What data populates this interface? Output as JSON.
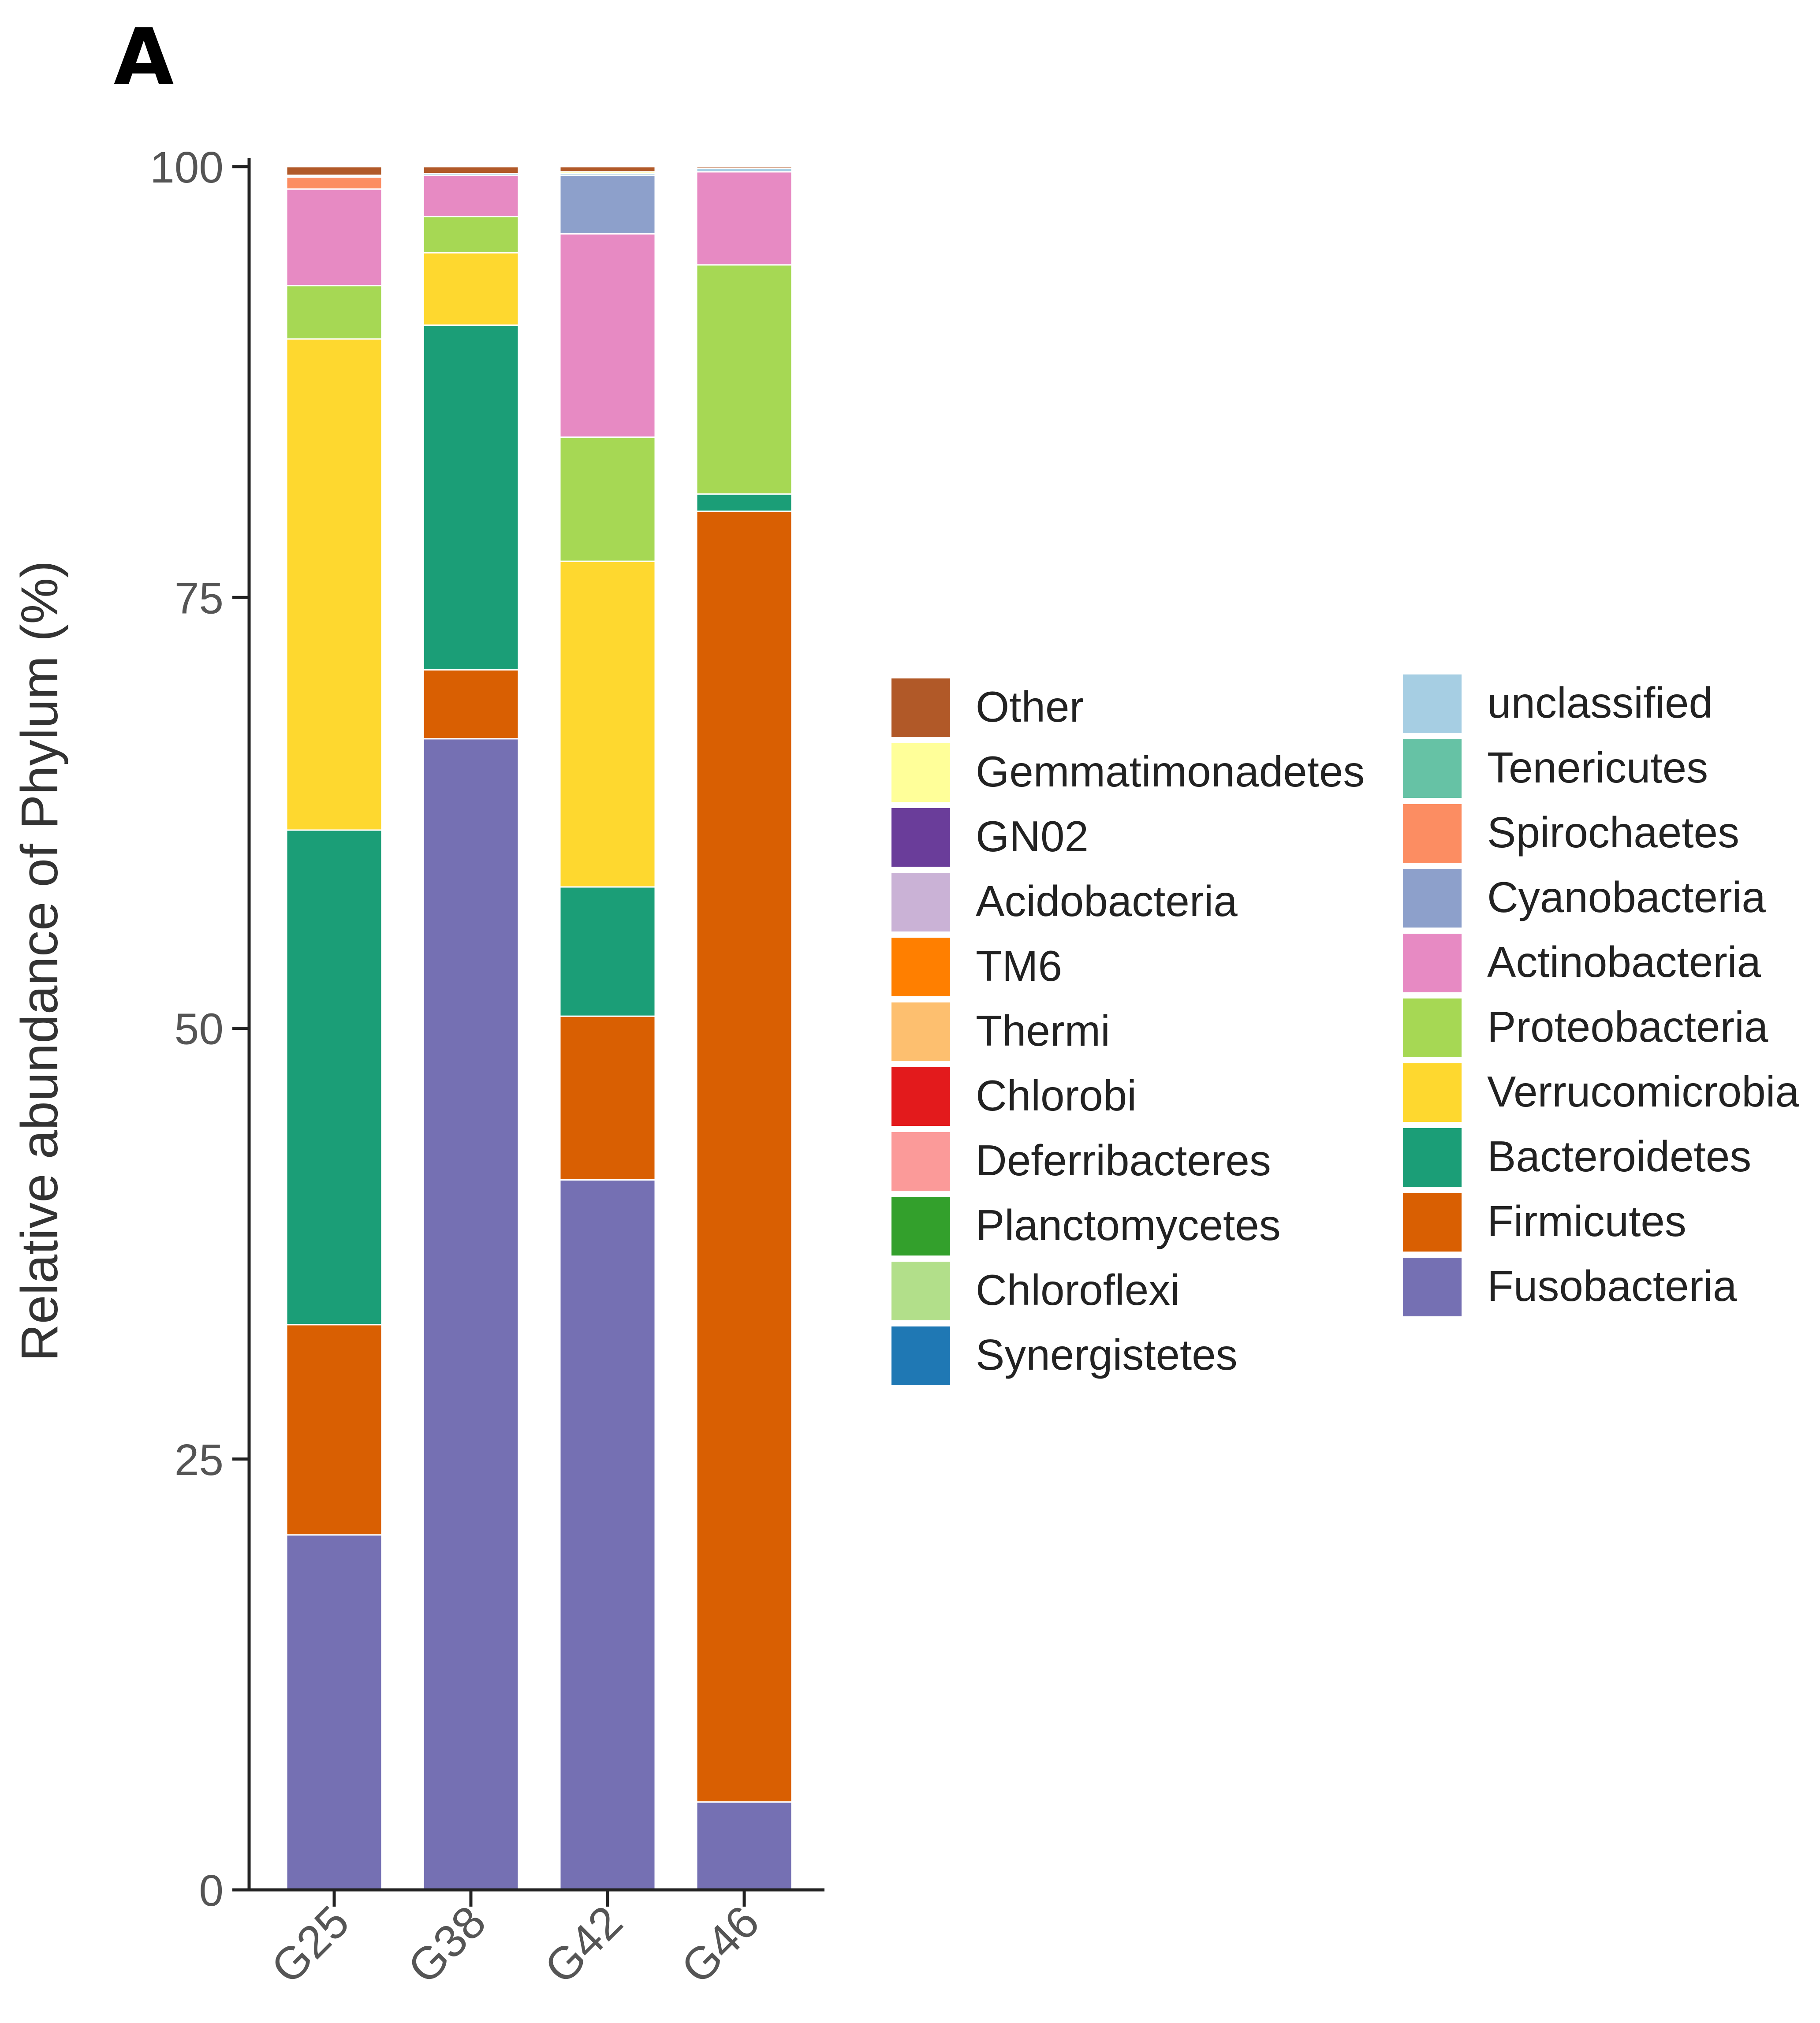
{
  "panel_label": "A",
  "chart_data": {
    "type": "bar",
    "stacked": true,
    "title": "",
    "xlabel": "",
    "ylabel": "Relative abundance of Phylum (%)",
    "ylim": [
      0,
      100
    ],
    "yticks": [
      0,
      25,
      50,
      75,
      100
    ],
    "categories": [
      "G25",
      "G38",
      "G42",
      "G46"
    ],
    "series": [
      {
        "name": "Fusobacteria",
        "color": "#7570b3",
        "values": [
          20.6,
          66.8,
          41.2,
          5.1
        ]
      },
      {
        "name": "Firmicutes",
        "color": "#d95f02",
        "values": [
          12.2,
          4.0,
          9.5,
          74.9
        ]
      },
      {
        "name": "Bacteroidetes",
        "color": "#1b9e77",
        "values": [
          28.7,
          20.0,
          7.5,
          1.0
        ]
      },
      {
        "name": "Verrucomicrobia",
        "color": "#fed82f",
        "values": [
          28.5,
          4.2,
          18.9,
          0
        ]
      },
      {
        "name": "Proteobacteria",
        "color": "#a6d854",
        "values": [
          3.1,
          2.1,
          7.2,
          13.3
        ]
      },
      {
        "name": "Actinobacteria",
        "color": "#e78ac3",
        "values": [
          5.6,
          2.4,
          11.8,
          5.4
        ]
      },
      {
        "name": "Cyanobacteria",
        "color": "#8da0cb",
        "values": [
          0,
          0,
          3.4,
          0
        ]
      },
      {
        "name": "Spirochaetes",
        "color": "#fc8d62",
        "values": [
          0.7,
          0,
          0,
          0
        ]
      },
      {
        "name": "Tenericutes",
        "color": "#66c2a5",
        "values": [
          0,
          0,
          0,
          0
        ]
      },
      {
        "name": "unclassified",
        "color": "#a6cee3",
        "values": [
          0.1,
          0.1,
          0.1,
          0.2
        ]
      },
      {
        "name": "Synergistetes",
        "color": "#1f78b4",
        "values": [
          0,
          0,
          0,
          0
        ]
      },
      {
        "name": "Chloroflexi",
        "color": "#b2df8a",
        "values": [
          0,
          0,
          0,
          0
        ]
      },
      {
        "name": "Planctomycetes",
        "color": "#33a02c",
        "values": [
          0,
          0,
          0,
          0
        ]
      },
      {
        "name": "Deferribacteres",
        "color": "#fb9a99",
        "values": [
          0,
          0,
          0,
          0
        ]
      },
      {
        "name": "Chlorobi",
        "color": "#e31a1c",
        "values": [
          0,
          0,
          0,
          0
        ]
      },
      {
        "name": "Thermi",
        "color": "#fdbf6f",
        "values": [
          0,
          0,
          0,
          0
        ]
      },
      {
        "name": "TM6",
        "color": "#ff7f00",
        "values": [
          0,
          0,
          0,
          0
        ]
      },
      {
        "name": "Acidobacteria",
        "color": "#cab2d6",
        "values": [
          0,
          0,
          0,
          0
        ]
      },
      {
        "name": "GN02",
        "color": "#6a3d9a",
        "values": [
          0,
          0,
          0,
          0
        ]
      },
      {
        "name": "Gemmatimonadetes",
        "color": "#ffff99",
        "values": [
          0,
          0,
          0.1,
          0
        ]
      },
      {
        "name": "Other",
        "color": "#b15928",
        "values": [
          0.5,
          0.4,
          0.3,
          0.1
        ]
      }
    ],
    "legend": {
      "placement": "right",
      "columns": [
        [
          "Other",
          "Gemmatimonadetes",
          "GN02",
          "Acidobacteria",
          "TM6",
          "Thermi",
          "Chlorobi",
          "Deferribacteres",
          "Planctomycetes",
          "Chloroflexi",
          "Synergistetes"
        ],
        [
          "unclassified",
          "Tenericutes",
          "Spirochaetes",
          "Cyanobacteria",
          "Actinobacteria",
          "Proteobacteria",
          "Verrucomicrobia",
          "Bacteroidetes",
          "Firmicutes",
          "Fusobacteria"
        ]
      ]
    }
  }
}
